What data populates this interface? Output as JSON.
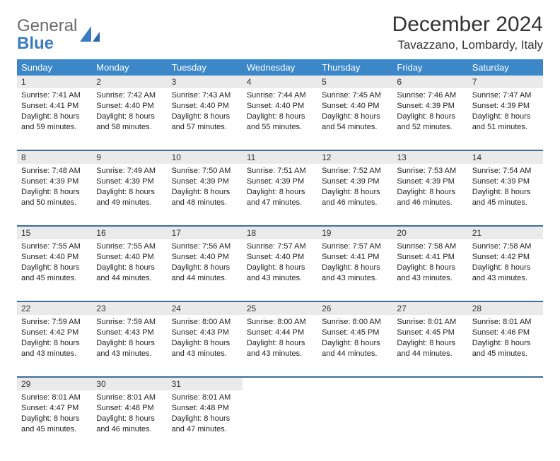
{
  "brand": {
    "line1": "General",
    "line2": "Blue"
  },
  "title": "December 2024",
  "location": "Tavazzano, Lombardy, Italy",
  "colors": {
    "header_bg": "#3b87c8",
    "header_text": "#ffffff",
    "daynum_bg": "#eaeaea",
    "rule": "#3b6fa0",
    "brand_blue": "#3b7bbf",
    "brand_gray": "#6b6b6b",
    "text": "#222222",
    "page_bg": "#ffffff"
  },
  "weekdays": [
    "Sunday",
    "Monday",
    "Tuesday",
    "Wednesday",
    "Thursday",
    "Friday",
    "Saturday"
  ],
  "weeks": [
    [
      {
        "n": "1",
        "sunrise": "7:41 AM",
        "sunset": "4:41 PM",
        "daylight": "8 hours and 59 minutes."
      },
      {
        "n": "2",
        "sunrise": "7:42 AM",
        "sunset": "4:40 PM",
        "daylight": "8 hours and 58 minutes."
      },
      {
        "n": "3",
        "sunrise": "7:43 AM",
        "sunset": "4:40 PM",
        "daylight": "8 hours and 57 minutes."
      },
      {
        "n": "4",
        "sunrise": "7:44 AM",
        "sunset": "4:40 PM",
        "daylight": "8 hours and 55 minutes."
      },
      {
        "n": "5",
        "sunrise": "7:45 AM",
        "sunset": "4:40 PM",
        "daylight": "8 hours and 54 minutes."
      },
      {
        "n": "6",
        "sunrise": "7:46 AM",
        "sunset": "4:39 PM",
        "daylight": "8 hours and 52 minutes."
      },
      {
        "n": "7",
        "sunrise": "7:47 AM",
        "sunset": "4:39 PM",
        "daylight": "8 hours and 51 minutes."
      }
    ],
    [
      {
        "n": "8",
        "sunrise": "7:48 AM",
        "sunset": "4:39 PM",
        "daylight": "8 hours and 50 minutes."
      },
      {
        "n": "9",
        "sunrise": "7:49 AM",
        "sunset": "4:39 PM",
        "daylight": "8 hours and 49 minutes."
      },
      {
        "n": "10",
        "sunrise": "7:50 AM",
        "sunset": "4:39 PM",
        "daylight": "8 hours and 48 minutes."
      },
      {
        "n": "11",
        "sunrise": "7:51 AM",
        "sunset": "4:39 PM",
        "daylight": "8 hours and 47 minutes."
      },
      {
        "n": "12",
        "sunrise": "7:52 AM",
        "sunset": "4:39 PM",
        "daylight": "8 hours and 46 minutes."
      },
      {
        "n": "13",
        "sunrise": "7:53 AM",
        "sunset": "4:39 PM",
        "daylight": "8 hours and 46 minutes."
      },
      {
        "n": "14",
        "sunrise": "7:54 AM",
        "sunset": "4:39 PM",
        "daylight": "8 hours and 45 minutes."
      }
    ],
    [
      {
        "n": "15",
        "sunrise": "7:55 AM",
        "sunset": "4:40 PM",
        "daylight": "8 hours and 45 minutes."
      },
      {
        "n": "16",
        "sunrise": "7:55 AM",
        "sunset": "4:40 PM",
        "daylight": "8 hours and 44 minutes."
      },
      {
        "n": "17",
        "sunrise": "7:56 AM",
        "sunset": "4:40 PM",
        "daylight": "8 hours and 44 minutes."
      },
      {
        "n": "18",
        "sunrise": "7:57 AM",
        "sunset": "4:40 PM",
        "daylight": "8 hours and 43 minutes."
      },
      {
        "n": "19",
        "sunrise": "7:57 AM",
        "sunset": "4:41 PM",
        "daylight": "8 hours and 43 minutes."
      },
      {
        "n": "20",
        "sunrise": "7:58 AM",
        "sunset": "4:41 PM",
        "daylight": "8 hours and 43 minutes."
      },
      {
        "n": "21",
        "sunrise": "7:58 AM",
        "sunset": "4:42 PM",
        "daylight": "8 hours and 43 minutes."
      }
    ],
    [
      {
        "n": "22",
        "sunrise": "7:59 AM",
        "sunset": "4:42 PM",
        "daylight": "8 hours and 43 minutes."
      },
      {
        "n": "23",
        "sunrise": "7:59 AM",
        "sunset": "4:43 PM",
        "daylight": "8 hours and 43 minutes."
      },
      {
        "n": "24",
        "sunrise": "8:00 AM",
        "sunset": "4:43 PM",
        "daylight": "8 hours and 43 minutes."
      },
      {
        "n": "25",
        "sunrise": "8:00 AM",
        "sunset": "4:44 PM",
        "daylight": "8 hours and 43 minutes."
      },
      {
        "n": "26",
        "sunrise": "8:00 AM",
        "sunset": "4:45 PM",
        "daylight": "8 hours and 44 minutes."
      },
      {
        "n": "27",
        "sunrise": "8:01 AM",
        "sunset": "4:45 PM",
        "daylight": "8 hours and 44 minutes."
      },
      {
        "n": "28",
        "sunrise": "8:01 AM",
        "sunset": "4:46 PM",
        "daylight": "8 hours and 45 minutes."
      }
    ],
    [
      {
        "n": "29",
        "sunrise": "8:01 AM",
        "sunset": "4:47 PM",
        "daylight": "8 hours and 45 minutes."
      },
      {
        "n": "30",
        "sunrise": "8:01 AM",
        "sunset": "4:48 PM",
        "daylight": "8 hours and 46 minutes."
      },
      {
        "n": "31",
        "sunrise": "8:01 AM",
        "sunset": "4:48 PM",
        "daylight": "8 hours and 47 minutes."
      },
      null,
      null,
      null,
      null
    ]
  ],
  "labels": {
    "sunrise": "Sunrise:",
    "sunset": "Sunset:",
    "daylight": "Daylight:"
  }
}
